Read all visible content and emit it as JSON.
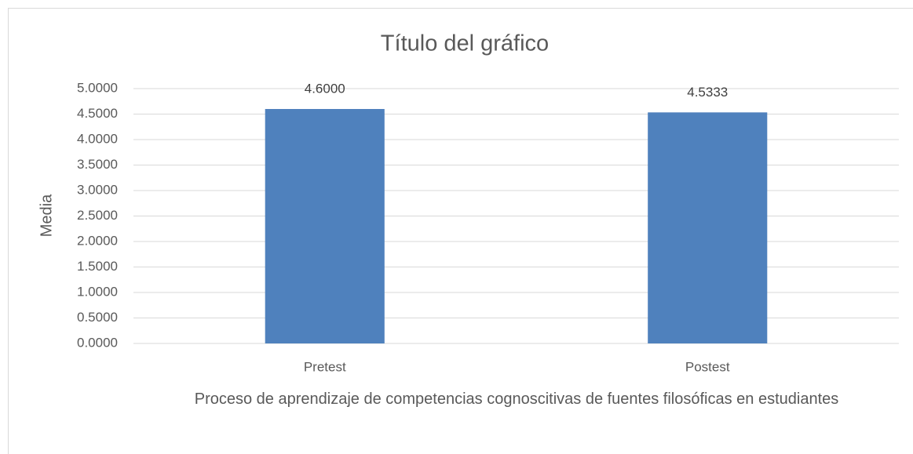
{
  "chart_data": {
    "type": "bar",
    "title": "Título del gráfico",
    "x_label": "Proceso de aprendizaje de competencias cognoscitivas de fuentes filosóficas en estudiantes",
    "y_label": "Media",
    "categories": [
      "Pretest",
      "Postest"
    ],
    "values": [
      4.6,
      4.5333
    ],
    "value_labels": [
      "4.6000",
      "4.5333"
    ],
    "color": "#4f81bd",
    "ylim": [
      0,
      5
    ],
    "yticks": [
      {
        "value": 0,
        "label": "0.0000"
      },
      {
        "value": 0.5,
        "label": "0.5000"
      },
      {
        "value": 1,
        "label": "1.0000"
      },
      {
        "value": 1.5,
        "label": "1.5000"
      },
      {
        "value": 2,
        "label": "2.0000"
      },
      {
        "value": 2.5,
        "label": "2.5000"
      },
      {
        "value": 3,
        "label": "3.0000"
      },
      {
        "value": 3.5,
        "label": "3.5000"
      },
      {
        "value": 4,
        "label": "4.0000"
      },
      {
        "value": 4.5,
        "label": "4.5000"
      },
      {
        "value": 5,
        "label": "5.0000"
      }
    ],
    "grid": true
  }
}
